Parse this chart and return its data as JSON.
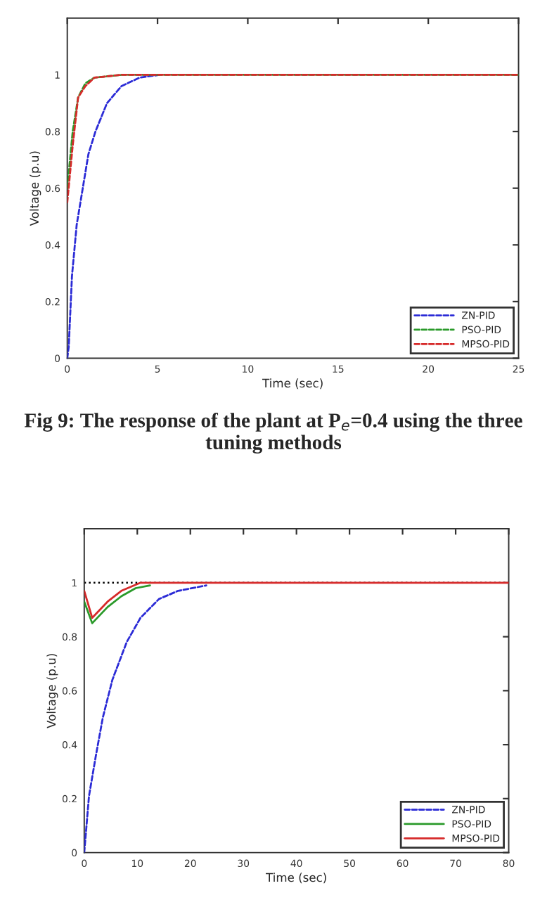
{
  "chart_data": [
    {
      "type": "line",
      "xlabel": "Time (sec)",
      "ylabel": "Voltage (p.u)",
      "xlim": [
        0,
        25
      ],
      "ylim": [
        0,
        1.2
      ],
      "xticks": [
        0,
        5,
        10,
        15,
        20,
        25
      ],
      "yticks": [
        0,
        0.2,
        0.4,
        0.6,
        0.8,
        1
      ],
      "grid": false,
      "legend": "bottom right",
      "marker": "none",
      "annotations": [
        "Fig 9: The response of the plant at P$_{e}$=0.4 using the three tuning methods"
      ],
      "series": [
        {
          "name": "ZN-PID",
          "color": "#2b2bd6",
          "line_style": "dashed",
          "x": [
            0,
            0.08,
            0.26,
            0.52,
            0.78,
            1.17,
            1.56,
            2.2,
            3.0,
            4.0,
            5.1
          ],
          "values": [
            0,
            0.04,
            0.29,
            0.47,
            0.57,
            0.72,
            0.8,
            0.9,
            0.96,
            0.99,
            1.0
          ]
        },
        {
          "name": "PSO-PID",
          "color": "#2a9a2a",
          "line_style": "dashed",
          "x": [
            0,
            0.3,
            0.6,
            1.0,
            1.5,
            3,
            6,
            10,
            15,
            20,
            25
          ],
          "values": [
            0.6,
            0.8,
            0.92,
            0.97,
            0.99,
            1.0,
            1.0,
            1.0,
            1.0,
            1.0,
            1.0
          ]
        },
        {
          "name": "MPSO-PID",
          "color": "#d62a2a",
          "line_style": "dashed",
          "x": [
            0,
            0.3,
            0.6,
            1.0,
            1.5,
            3,
            6,
            10,
            15,
            20,
            25
          ],
          "values": [
            0.55,
            0.75,
            0.92,
            0.96,
            0.99,
            1.0,
            1.0,
            1.0,
            1.0,
            1.0,
            1.0
          ]
        }
      ]
    },
    {
      "type": "line",
      "xlabel": "Time (sec)",
      "ylabel": "Voltage (p.u)",
      "xlim": [
        0,
        80
      ],
      "ylim": [
        0,
        1.2
      ],
      "xticks": [
        0,
        10,
        20,
        30,
        40,
        50,
        60,
        70,
        80
      ],
      "yticks": [
        0,
        0.2,
        0.4,
        0.6,
        0.8,
        1
      ],
      "grid": false,
      "legend": "bottom right",
      "marker": "none",
      "ref_lines": [
        {
          "axis": "y",
          "value": 1,
          "color": "#000000",
          "line_style": "dotted"
        }
      ],
      "series": [
        {
          "name": "ZN-PID",
          "color": "#2b2bd6",
          "line_style": "dashed",
          "x": [
            0,
            0.9,
            2.2,
            3.5,
            5.3,
            8,
            10.6,
            14.1,
            17.7,
            23
          ],
          "values": [
            0,
            0.21,
            0.36,
            0.5,
            0.64,
            0.78,
            0.87,
            0.94,
            0.97,
            0.99
          ]
        },
        {
          "name": "PSO-PID",
          "color": "#2a9a2a",
          "line_style": "solid",
          "x": [
            0,
            1.5,
            4.4,
            7,
            9.7,
            12.4
          ],
          "values": [
            0.93,
            0.85,
            0.91,
            0.95,
            0.98,
            0.99
          ]
        },
        {
          "name": "MPSO-PID",
          "color": "#d62a2a",
          "line_style": "solid",
          "x": [
            0,
            1.5,
            4.4,
            7,
            10.6,
            12,
            20,
            40,
            60,
            80
          ],
          "values": [
            0.97,
            0.87,
            0.93,
            0.97,
            1.0,
            1.0,
            1.0,
            1.0,
            1.0,
            1.0
          ]
        }
      ]
    }
  ]
}
